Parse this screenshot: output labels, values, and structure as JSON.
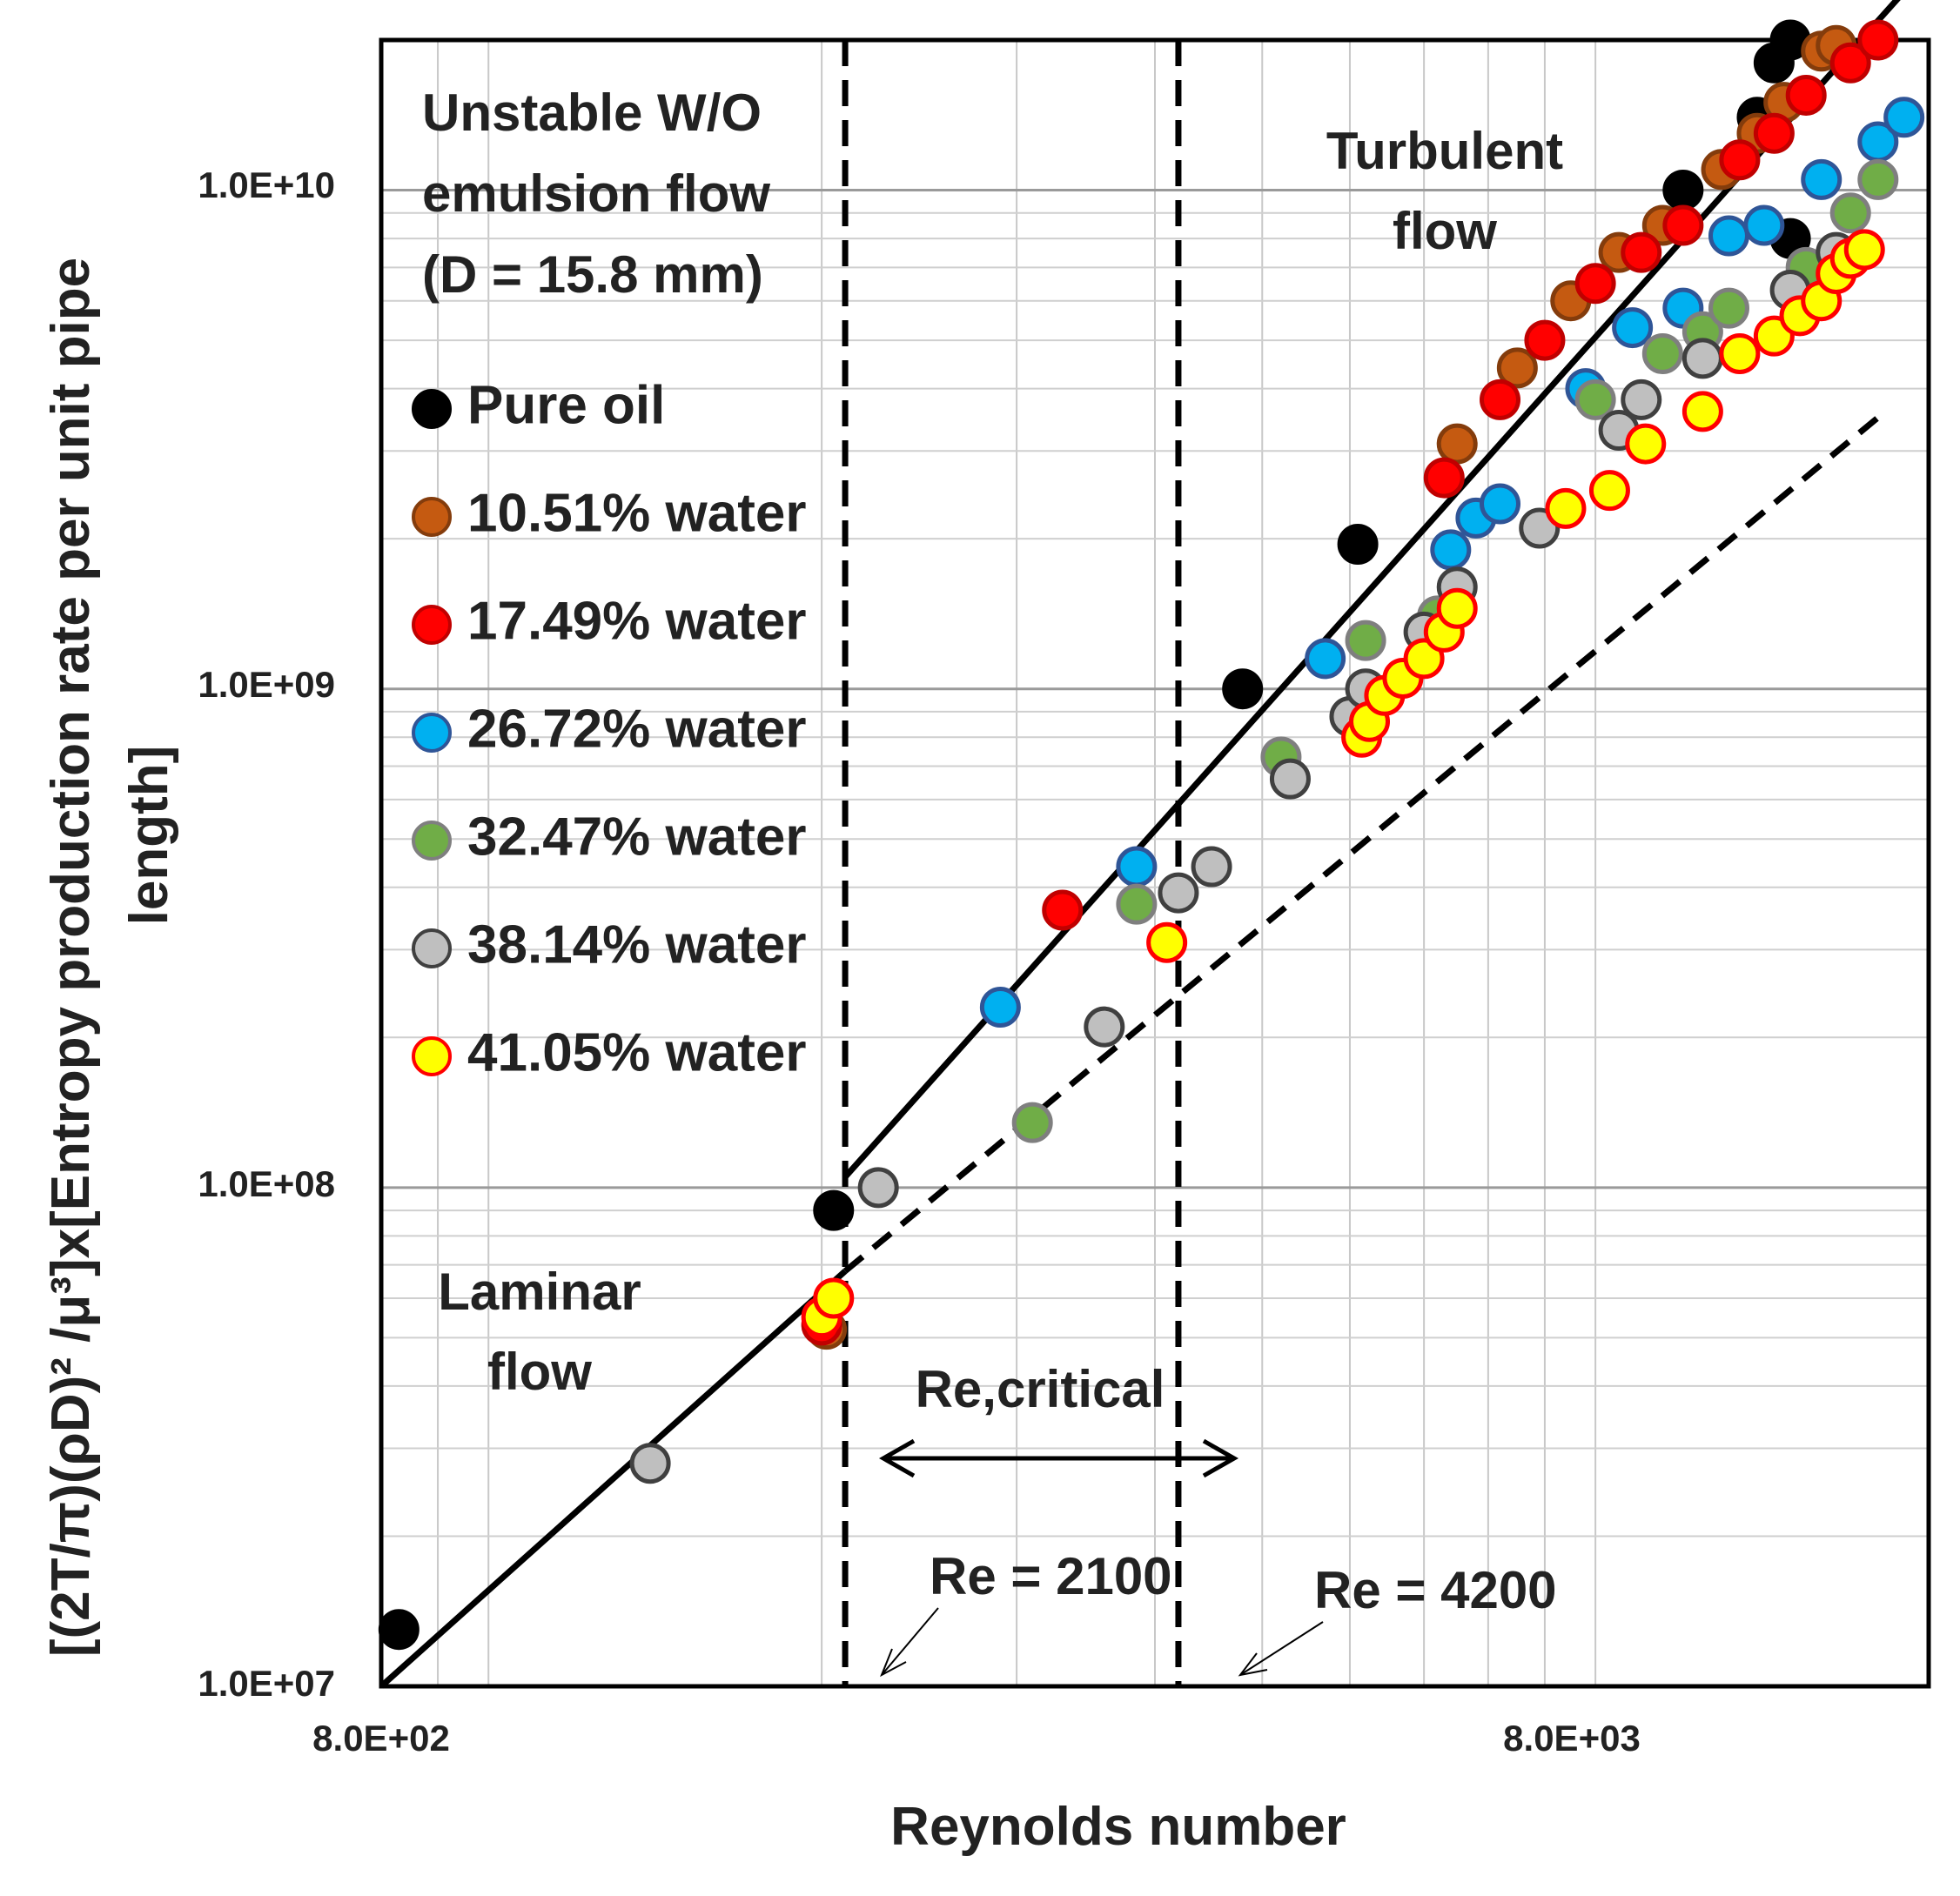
{
  "chart_data": {
    "type": "scatter",
    "xscale": "log",
    "yscale": "log",
    "xlim": [
      800,
      20000
    ],
    "ylim": [
      10000000,
      20000000000
    ],
    "xlabel": "Reynolds number",
    "ylabel_lines": [
      "[(2T/π)(ρD)² /μ³]x[Entropy production rate per unit pipe",
      "length]"
    ],
    "x_tick_labels": [
      {
        "value": 800,
        "label": "8.0E+02"
      },
      {
        "value": 8000,
        "label": "8.0E+03"
      }
    ],
    "y_tick_labels": [
      {
        "value": 10000000,
        "label": "1.0E+07"
      },
      {
        "value": 100000000,
        "label": "1.0E+08"
      },
      {
        "value": 1000000000,
        "label": "1.0E+09"
      },
      {
        "value": 10000000000,
        "label": "1.0E+10"
      }
    ],
    "grid": true,
    "annotations": {
      "title_lines": [
        "Unstable W/O",
        "emulsion flow",
        "(D = 15.8 mm)"
      ],
      "turbulent_lines": [
        "Turbulent",
        "flow"
      ],
      "laminar_lines": [
        "Laminar",
        "flow"
      ],
      "re_critical": "Re,critical",
      "re_2100": "Re = 2100",
      "re_4200": "Re = 4200"
    },
    "critical_lines": [
      2100,
      4200
    ],
    "fit_lines": [
      {
        "name": "laminar-fit",
        "style": "solid",
        "points": [
          [
            800,
            10000000
          ],
          [
            2100,
            68000000
          ]
        ]
      },
      {
        "name": "laminar-extension",
        "style": "dashed",
        "points": [
          [
            2100,
            68000000
          ],
          [
            18000,
            3500000000
          ]
        ]
      },
      {
        "name": "turbulent-fit",
        "style": "solid",
        "points": [
          [
            2100,
            105000000
          ],
          [
            19000,
            25000000000
          ]
        ]
      }
    ],
    "legend_position": "top-left",
    "series": [
      {
        "name": "Pure oil",
        "fill": "#000000",
        "stroke": "#000000",
        "points": [
          [
            830,
            13000000
          ],
          [
            2050,
            90000000
          ],
          [
            4800,
            1000000000
          ],
          [
            6100,
            1950000000
          ],
          [
            12000,
            10000000000
          ],
          [
            15000,
            8000000000
          ],
          [
            14000,
            14000000000
          ],
          [
            14500,
            18000000000
          ],
          [
            15000,
            20000000000
          ]
        ]
      },
      {
        "name": "10.51% water",
        "fill": "#c55a11",
        "stroke": "#843c0c",
        "points": [
          [
            2020,
            52000000
          ],
          [
            7500,
            3100000000
          ],
          [
            8500,
            4400000000
          ],
          [
            9500,
            6000000000
          ],
          [
            10500,
            7500000000
          ],
          [
            11500,
            8500000000
          ],
          [
            13000,
            11000000000
          ],
          [
            14000,
            13000000000
          ],
          [
            14800,
            15000000000
          ],
          [
            16000,
            19000000000
          ],
          [
            16500,
            19500000000
          ]
        ]
      },
      {
        "name": "17.49% water",
        "fill": "#ff0000",
        "stroke": "#c00000",
        "points": [
          [
            2000,
            53000000
          ],
          [
            3300,
            360000000
          ],
          [
            7300,
            2650000000
          ],
          [
            8200,
            3800000000
          ],
          [
            9000,
            5000000000
          ],
          [
            10000,
            6500000000
          ],
          [
            11000,
            7500000000
          ],
          [
            12000,
            8500000000
          ],
          [
            13500,
            11500000000
          ],
          [
            14500,
            13000000000
          ],
          [
            15500,
            15500000000
          ],
          [
            17000,
            18000000000
          ],
          [
            18000,
            20000000000
          ]
        ]
      },
      {
        "name": "26.72% water",
        "fill": "#00b0f0",
        "stroke": "#2f5597",
        "points": [
          [
            2900,
            230000000
          ],
          [
            3850,
            440000000
          ],
          [
            5700,
            1150000000
          ],
          [
            7400,
            1900000000
          ],
          [
            7800,
            2200000000
          ],
          [
            8200,
            2350000000
          ],
          [
            9800,
            4000000000
          ],
          [
            10800,
            5300000000
          ],
          [
            12000,
            5800000000
          ],
          [
            13200,
            8100000000
          ],
          [
            14200,
            8500000000
          ],
          [
            16000,
            10500000000
          ],
          [
            18000,
            12500000000
          ],
          [
            19000,
            14000000000
          ]
        ]
      },
      {
        "name": "32.47% water",
        "fill": "#70ad47",
        "stroke": "#7f7f7f",
        "points": [
          [
            3100,
            135000000
          ],
          [
            3850,
            370000000
          ],
          [
            5200,
            730000000
          ],
          [
            6200,
            1250000000
          ],
          [
            7200,
            1400000000
          ],
          [
            10000,
            3800000000
          ],
          [
            11500,
            4700000000
          ],
          [
            12500,
            5200000000
          ],
          [
            13200,
            5800000000
          ],
          [
            15500,
            7000000000
          ],
          [
            17000,
            9000000000
          ],
          [
            18000,
            10500000000
          ]
        ]
      },
      {
        "name": "38.14% water",
        "fill": "#bfbfbf",
        "stroke": "#404040",
        "points": [
          [
            1400,
            28000000
          ],
          [
            2250,
            100000000
          ],
          [
            3600,
            210000000
          ],
          [
            4200,
            390000000
          ],
          [
            4500,
            440000000
          ],
          [
            5300,
            660000000
          ],
          [
            6000,
            880000000
          ],
          [
            6200,
            1000000000
          ],
          [
            7000,
            1300000000
          ],
          [
            7500,
            1600000000
          ],
          [
            8900,
            2100000000
          ],
          [
            10500,
            3300000000
          ],
          [
            11000,
            3800000000
          ],
          [
            12500,
            4600000000
          ],
          [
            15000,
            6300000000
          ],
          [
            16500,
            7500000000
          ]
        ]
      },
      {
        "name": "41.05% water",
        "fill": "#ffff00",
        "stroke": "#ff0000",
        "points": [
          [
            2000,
            55000000
          ],
          [
            2050,
            60000000
          ],
          [
            4100,
            310000000
          ],
          [
            6150,
            800000000
          ],
          [
            6250,
            860000000
          ],
          [
            6450,
            970000000
          ],
          [
            6700,
            1050000000
          ],
          [
            7000,
            1150000000
          ],
          [
            7300,
            1300000000
          ],
          [
            7500,
            1450000000
          ],
          [
            9400,
            2300000000
          ],
          [
            10300,
            2500000000
          ],
          [
            11100,
            3100000000
          ],
          [
            12500,
            3600000000
          ],
          [
            13500,
            4700000000
          ],
          [
            14500,
            5100000000
          ],
          [
            15300,
            5600000000
          ],
          [
            16000,
            6000000000
          ],
          [
            16500,
            6800000000
          ],
          [
            17000,
            7300000000
          ],
          [
            17500,
            7600000000
          ]
        ]
      }
    ]
  }
}
